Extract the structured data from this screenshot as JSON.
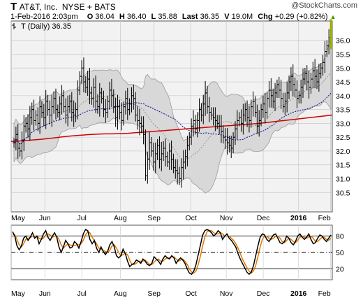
{
  "header": {
    "symbol": "T",
    "company": "AT&T, Inc.",
    "exchange": "NYSE + BATS",
    "datetime": "1-Feb-2016 2:03pm",
    "open_label": "O",
    "open": "36.04",
    "high_label": "H",
    "high": "36.40",
    "low_label": "L",
    "low": "35.88",
    "last_label": "Last",
    "last": "36.35",
    "volume_label": "V",
    "volume": "19.0M",
    "change_label": "Chg",
    "change": "+0.29 (+0.82%)"
  },
  "brand": "@StockCharts.com",
  "legend": "T (Daily) 36.35",
  "colors": {
    "price_bar": "#000000",
    "ma_200": "#d00000",
    "ma_50_dotted": "#1a1aa0",
    "bollinger_fill": "#d8d8d8",
    "bollinger_mid": "#808080",
    "stoch_k": "#000000",
    "stoch_d": "#e07800",
    "plot_bg": "#f2f2f2",
    "up_marker": "#3aa000",
    "last_marker": "#e0c000"
  },
  "chart_data": [
    {
      "type": "ohlc",
      "title": "T (Daily) 36.35",
      "x_ticks": [
        "May",
        "Jun",
        "Jul",
        "Aug",
        "Sep",
        "Oct",
        "Nov",
        "Dec",
        "2016",
        "Feb"
      ],
      "y_ticks": [
        30.5,
        31.0,
        31.5,
        32.0,
        32.5,
        33.0,
        33.5,
        34.0,
        34.5,
        35.0,
        35.5,
        36.0
      ],
      "ylim": [
        29.8,
        36.7
      ],
      "overlays": [
        "200-day moving average (red)",
        "Bollinger Bands (grey)",
        "dotted moving average (blue)"
      ],
      "series": [
        {
          "name": "close",
          "values": [
            32.3,
            32.6,
            32.1,
            32.0,
            32.4,
            32.9,
            33.0,
            32.8,
            33.2,
            33.5,
            33.1,
            33.3,
            33.0,
            33.6,
            33.4,
            33.2,
            33.8,
            33.5,
            33.3,
            33.6,
            33.9,
            33.5,
            33.4,
            33.7,
            34.0,
            33.6,
            33.3,
            33.6,
            33.8,
            33.4,
            33.3,
            33.5,
            34.2,
            34.7,
            35.0,
            34.5,
            34.3,
            34.6,
            34.1,
            33.9,
            34.3,
            33.8,
            33.6,
            34.1,
            33.9,
            33.5,
            33.4,
            33.8,
            34.2,
            34.0,
            33.6,
            33.2,
            33.6,
            33.4,
            33.1,
            33.6,
            33.9,
            33.5,
            33.7,
            34.0,
            33.9,
            33.3,
            33.1,
            33.0,
            32.9,
            32.6,
            31.1,
            31.7,
            32.3,
            32.0,
            31.6,
            31.9,
            32.2,
            31.7,
            31.9,
            32.1,
            31.8,
            31.6,
            32.0,
            31.7,
            31.4,
            31.3,
            31.2,
            31.0,
            31.4,
            31.6,
            31.8,
            32.2,
            32.5,
            32.9,
            33.1,
            32.8,
            33.1,
            33.5,
            33.3,
            33.7,
            34.1,
            33.6,
            33.4,
            33.3,
            33.2,
            33.1,
            33.0,
            32.9,
            32.7,
            32.5,
            32.4,
            32.3,
            32.2,
            32.1,
            32.5,
            32.8,
            33.1,
            33.2,
            33.0,
            33.3,
            33.5,
            33.2,
            33.1,
            33.6,
            33.8,
            33.4,
            32.9,
            33.1,
            33.5,
            33.7,
            33.4,
            33.9,
            34.2,
            34.0,
            33.8,
            34.1,
            34.4,
            34.2,
            33.9,
            33.6,
            33.8,
            34.1,
            34.5,
            34.7,
            34.4,
            34.2,
            33.9,
            34.0,
            34.3,
            34.6,
            34.8,
            34.5,
            34.3,
            34.6,
            34.9,
            34.7,
            34.5,
            34.8,
            35.0,
            35.2,
            35.6,
            35.8,
            36.1,
            36.35
          ]
        },
        {
          "name": "200-day MA",
          "values": [
            32.35,
            32.36,
            32.38,
            32.4,
            32.42,
            32.45,
            32.48,
            32.51,
            32.54,
            32.56,
            32.58,
            32.6,
            32.61,
            32.62,
            32.62,
            32.63,
            32.64,
            32.66,
            32.68,
            32.7,
            32.72,
            32.74,
            32.76,
            32.78,
            32.8,
            32.82,
            32.84,
            32.86,
            32.88,
            32.9,
            32.92,
            32.94,
            32.96,
            32.98,
            33.0,
            33.03,
            33.06,
            33.09,
            33.12,
            33.15,
            33.18,
            33.21,
            33.24,
            33.27,
            33.3
          ]
        }
      ]
    },
    {
      "type": "line",
      "title": "",
      "y_ticks": [
        20,
        50,
        80
      ],
      "ylim": [
        0,
        100
      ],
      "series": [
        {
          "name": "%K",
          "values": [
            88,
            80,
            62,
            55,
            62,
            76,
            80,
            72,
            78,
            86,
            76,
            80,
            66,
            74,
            84,
            90,
            78,
            72,
            80,
            86,
            78,
            60,
            50,
            60,
            72,
            66,
            58,
            60,
            70,
            66,
            58,
            70,
            84,
            92,
            90,
            74,
            66,
            72,
            58,
            50,
            60,
            52,
            46,
            52,
            64,
            70,
            60,
            44,
            40,
            44,
            56,
            48,
            34,
            24,
            28,
            30,
            36,
            34,
            30,
            38,
            34,
            28,
            26,
            30,
            42,
            38,
            34,
            28,
            38,
            44,
            40,
            38,
            44,
            40,
            30,
            36,
            40,
            36,
            30,
            20,
            12,
            10,
            16,
            28,
            46,
            64,
            82,
            90,
            92,
            90,
            86,
            80,
            84,
            90,
            86,
            74,
            80,
            84,
            76,
            72,
            66,
            60,
            48,
            38,
            30,
            22,
            14,
            10,
            14,
            26,
            44,
            62,
            78,
            84,
            82,
            74,
            70,
            76,
            82,
            84,
            76,
            68,
            66,
            70,
            80,
            76,
            68,
            64,
            70,
            80,
            84,
            78,
            74,
            78,
            84,
            74,
            66,
            68,
            76,
            82,
            80,
            74,
            70,
            76,
            82
          ]
        },
        {
          "name": "%D",
          "values": [
            84,
            82,
            74,
            64,
            60,
            66,
            74,
            76,
            77,
            80,
            80,
            80,
            76,
            74,
            76,
            82,
            84,
            82,
            78,
            80,
            80,
            74,
            64,
            58,
            62,
            66,
            64,
            62,
            63,
            64,
            64,
            66,
            72,
            82,
            88,
            86,
            78,
            72,
            66,
            58,
            56,
            54,
            52,
            50,
            54,
            62,
            64,
            58,
            50,
            44,
            46,
            48,
            46,
            36,
            28,
            28,
            30,
            34,
            34,
            34,
            36,
            32,
            28,
            28,
            32,
            36,
            38,
            34,
            34,
            38,
            40,
            40,
            42,
            42,
            38,
            34,
            36,
            38,
            34,
            28,
            20,
            14,
            12,
            16,
            28,
            44,
            62,
            78,
            88,
            90,
            90,
            86,
            84,
            84,
            86,
            84,
            80,
            80,
            80,
            76,
            72,
            66,
            58,
            48,
            38,
            30,
            22,
            16,
            12,
            16,
            26,
            42,
            60,
            74,
            80,
            80,
            76,
            74,
            76,
            80,
            80,
            76,
            70,
            68,
            72,
            76,
            74,
            70,
            68,
            72,
            78,
            80,
            78,
            76,
            78,
            80,
            76,
            70,
            70,
            74,
            78,
            78,
            74,
            72,
            76
          ]
        }
      ]
    }
  ]
}
